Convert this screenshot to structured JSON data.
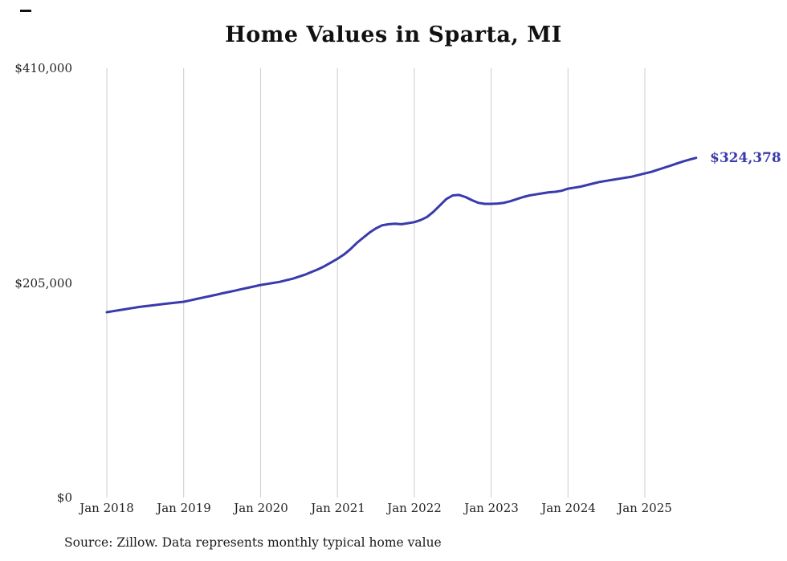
{
  "chart_data": {
    "type": "line",
    "title": "Home Values in Sparta, MI",
    "source_note": "Source: Zillow. Data represents monthly typical home value",
    "end_label": "$324,378",
    "end_value": 324378,
    "x_tick_labels": [
      "Jan 2018",
      "Jan 2019",
      "Jan 2020",
      "Jan 2021",
      "Jan 2022",
      "Jan 2023",
      "Jan 2024",
      "Jan 2025"
    ],
    "y_tick_labels": [
      "$0",
      "$205,000",
      "$410,000"
    ],
    "ylim": [
      0,
      410000
    ],
    "grid": "vertical-only",
    "legend": "none",
    "line_color": "#3a3aad",
    "x_start": "Jan 2018",
    "x_end": "Sep 2025",
    "x_interval": "monthly",
    "series": [
      {
        "name": "Typical home value",
        "values": [
          177000,
          178000,
          179000,
          180000,
          181000,
          182000,
          182800,
          183500,
          184200,
          185000,
          185700,
          186300,
          187000,
          188300,
          189700,
          191000,
          192300,
          193600,
          195000,
          196300,
          197600,
          199000,
          200300,
          201600,
          203000,
          204000,
          205000,
          206000,
          207500,
          209000,
          211000,
          213000,
          215500,
          218000,
          221000,
          224500,
          228000,
          232000,
          237000,
          243000,
          248000,
          253000,
          257000,
          260000,
          261000,
          261500,
          261000,
          262000,
          263000,
          265000,
          268000,
          273000,
          279000,
          285000,
          288500,
          289000,
          287000,
          284000,
          281500,
          280500,
          280500,
          280800,
          281500,
          283000,
          285000,
          287000,
          288500,
          289500,
          290500,
          291500,
          292000,
          293000,
          295000,
          296000,
          297000,
          298500,
          300000,
          301500,
          302500,
          303500,
          304500,
          305500,
          306500,
          308000,
          309500,
          311000,
          313000,
          315000,
          317000,
          319000,
          321000,
          322800,
          324378
        ]
      }
    ]
  }
}
